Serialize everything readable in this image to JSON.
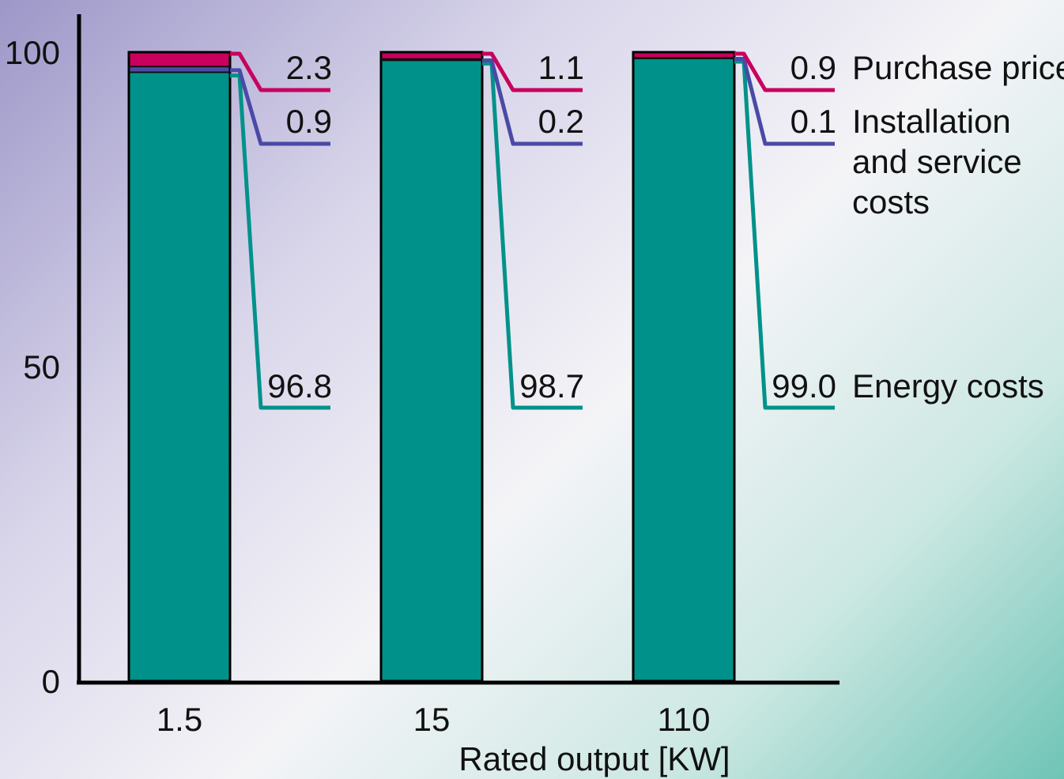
{
  "chart_data": {
    "type": "bar",
    "stacked": true,
    "categories": [
      "1.5",
      "15",
      "110"
    ],
    "xlabel": "Rated output [KW]",
    "ylabel": "",
    "ylim": [
      0,
      100
    ],
    "yticks": [
      "0",
      "50",
      "100"
    ],
    "series": [
      {
        "name": "Energy costs",
        "values": [
          96.8,
          98.7,
          99.0
        ],
        "value_labels": [
          "96.8",
          "98.7",
          "99.0"
        ],
        "color": "#00928a"
      },
      {
        "name": "Installation and service costs",
        "values": [
          0.9,
          0.2,
          0.1
        ],
        "value_labels": [
          "0.9",
          "0.2",
          "0.1"
        ],
        "color": "#4a4aa6"
      },
      {
        "name": "Purchase price",
        "values": [
          2.3,
          1.1,
          0.9
        ],
        "value_labels": [
          "2.3",
          "1.1",
          "0.9"
        ],
        "color": "#c8005e"
      }
    ],
    "legend": {
      "position": "right",
      "entries": [
        {
          "series": "Purchase price",
          "lines": [
            "Purchase price"
          ]
        },
        {
          "series": "Installation and service costs",
          "lines": [
            "Installation",
            "and service",
            "costs"
          ]
        },
        {
          "series": "Energy costs",
          "lines": [
            "Energy costs"
          ]
        }
      ]
    },
    "grid": false
  }
}
